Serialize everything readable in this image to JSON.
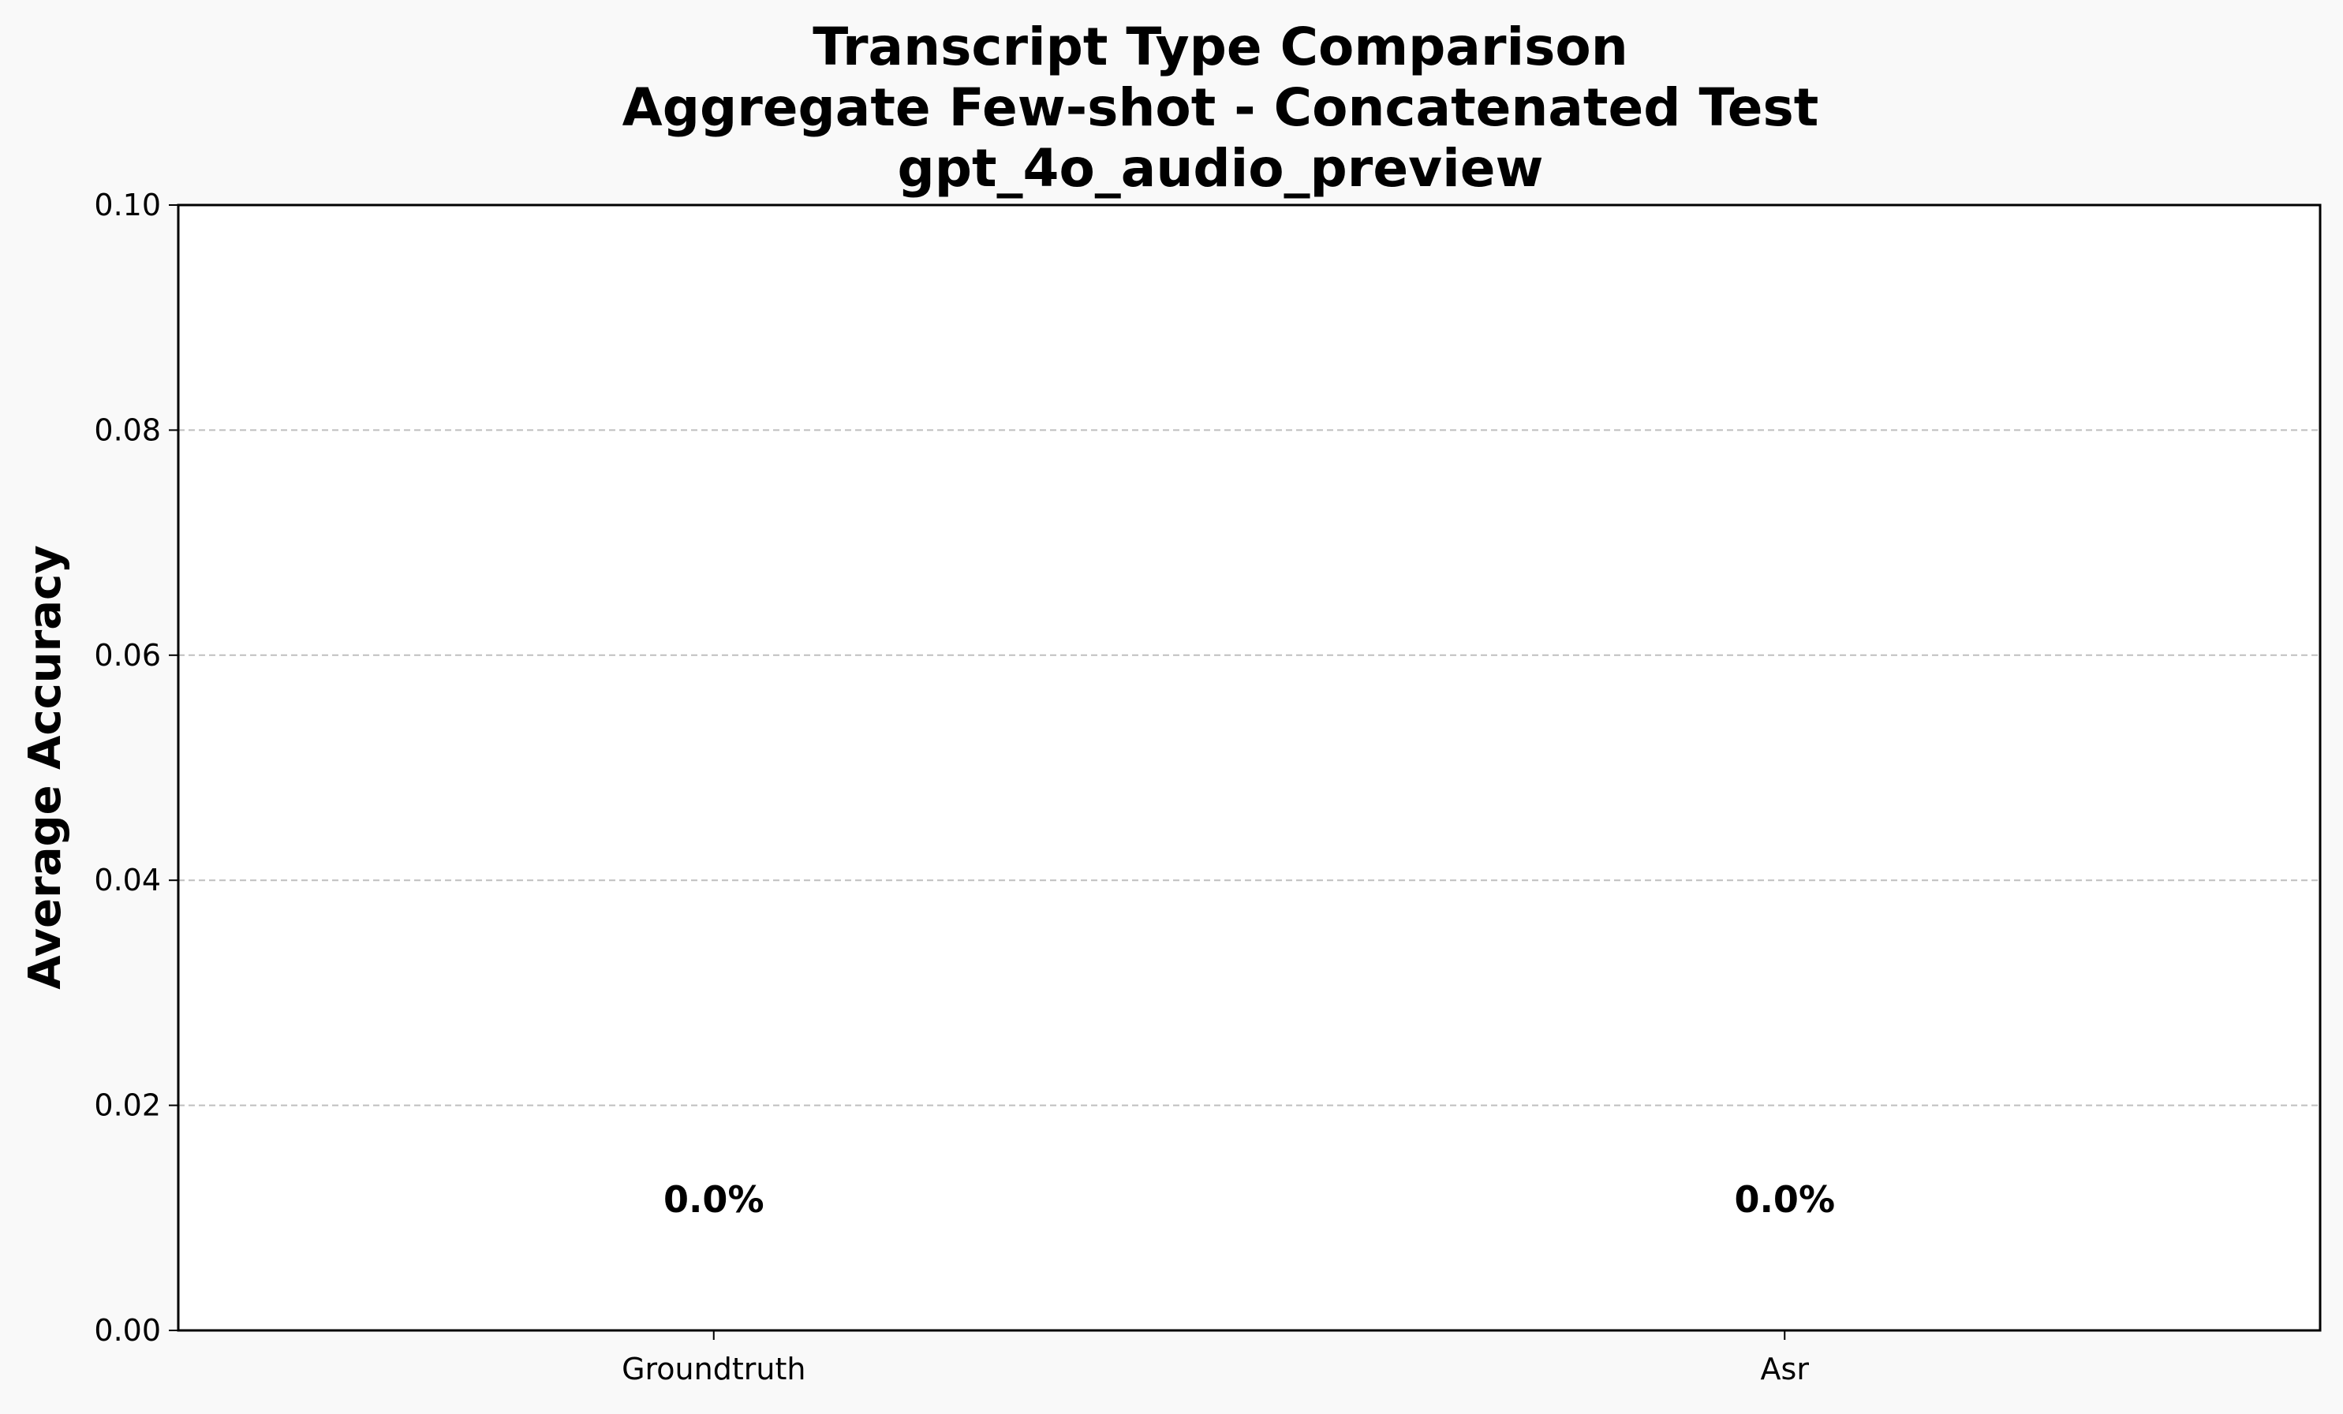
{
  "chart_data": {
    "type": "bar",
    "title": [
      "Transcript Type Comparison",
      "Aggregate Few-shot - Concatenated Test",
      "gpt_4o_audio_preview"
    ],
    "xlabel": "",
    "ylabel": "Average Accuracy",
    "categories": [
      "Groundtruth",
      "Asr"
    ],
    "values": [
      0.0,
      0.0
    ],
    "data_labels": [
      "0.0%",
      "0.0%"
    ],
    "ylim": [
      0,
      0.1
    ],
    "yticks": [
      0.0,
      0.02,
      0.04,
      0.06,
      0.08,
      0.1
    ],
    "ytick_labels": [
      "0.00",
      "0.02",
      "0.04",
      "0.06",
      "0.08",
      "0.10"
    ],
    "grid": "y-dashed",
    "legend": "none",
    "colors": {
      "background": "#f9f9f9",
      "plot_background": "#ffffff",
      "grid": "#bfbfbf",
      "axis": "#000000",
      "bar": "#4c72b0"
    }
  }
}
